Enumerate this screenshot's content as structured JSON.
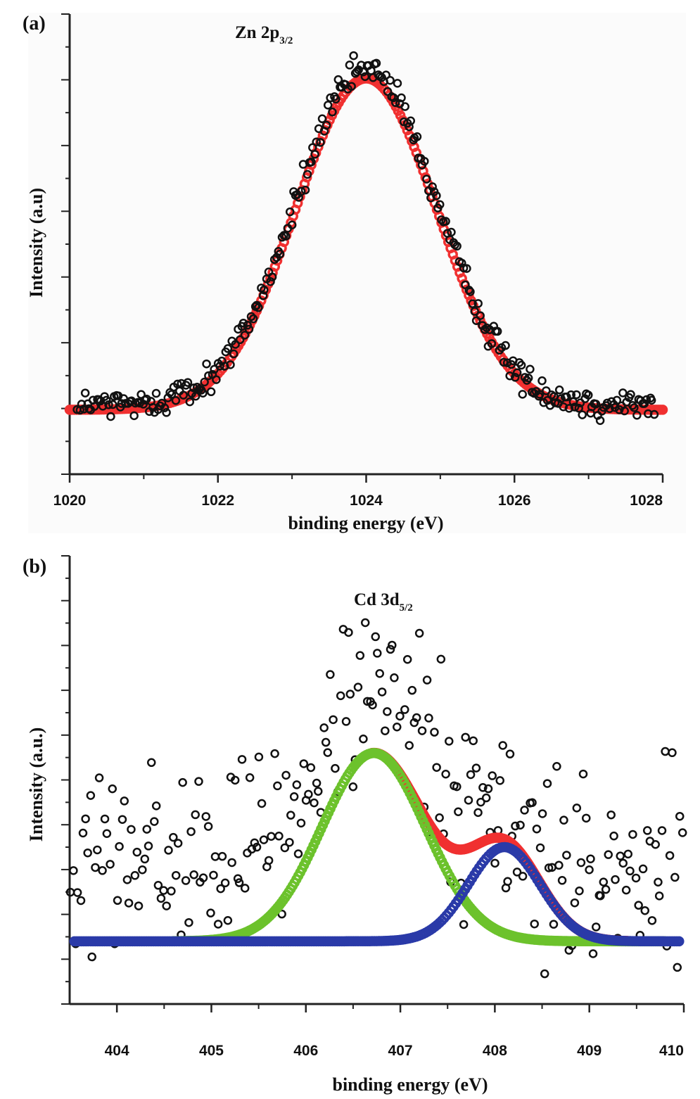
{
  "chart_data": [
    {
      "panel_label": "(a)",
      "type": "scatter",
      "title": "Zn 2p",
      "title_subscript": "3/2",
      "xlabel": "binding energy (eV)",
      "ylabel": "Intensity (a.u)",
      "xlim": [
        1020,
        1028
      ],
      "ylim": [
        0,
        1
      ],
      "x_ticks": [
        1020,
        1022,
        1024,
        1026,
        1028
      ],
      "x_tick_labels": [
        "1020",
        "1022",
        "1024",
        "1026",
        "1028"
      ],
      "y_tick_labels": false,
      "grid": false,
      "colors": {
        "points": "#111111",
        "fit": "#f03030"
      },
      "series": [
        {
          "kind": "scatter",
          "description_free": true,
          "x_range": [
            1020.1,
            1027.9
          ],
          "count": 300,
          "peak": {
            "center": 1024.0,
            "sigma": 0.95,
            "baseline": 0.15,
            "amplitude": 0.73,
            "noise": 0.02
          }
        },
        {
          "kind": "fit",
          "color": "#f03030",
          "peak": {
            "center": 1024.0,
            "sigma": 0.95,
            "baseline": 0.14,
            "amplitude": 0.72
          }
        }
      ]
    },
    {
      "panel_label": "(b)",
      "type": "scatter",
      "title": "Cd 3d",
      "title_subscript": "5/2",
      "xlabel": "binding energy (eV)",
      "ylabel": "Intensity (a.u.)",
      "xlim": [
        403.5,
        410
      ],
      "ylim": [
        0,
        1
      ],
      "x_ticks": [
        404,
        405,
        406,
        407,
        408,
        409,
        410
      ],
      "x_tick_labels": [
        "404",
        "405",
        "406",
        "407",
        "408",
        "409",
        "410"
      ],
      "y_tick_labels": false,
      "grid": false,
      "colors": {
        "points": "#111111",
        "sum": "#f03030",
        "peak1": "#6cc22c",
        "peak2": "#2a3aa8"
      },
      "series": [
        {
          "kind": "scatter",
          "x_range": [
            403.5,
            410
          ],
          "count": 250,
          "peak": {
            "center": 406.75,
            "sigma": 0.55,
            "baseline": 0.3,
            "amplitude": 0.42,
            "noise": 0.13
          }
        },
        {
          "kind": "fit",
          "color": "#2a3aa8",
          "peak": {
            "center": 408.1,
            "sigma": 0.38,
            "baseline": 0.14,
            "amplitude": 0.21
          }
        },
        {
          "kind": "fit",
          "color": "#6cc22c",
          "peak": {
            "center": 406.72,
            "sigma": 0.55,
            "baseline": 0.14,
            "amplitude": 0.42
          }
        },
        {
          "kind": "sum",
          "color": "#f03030",
          "start_x": 406.7
        }
      ]
    }
  ]
}
